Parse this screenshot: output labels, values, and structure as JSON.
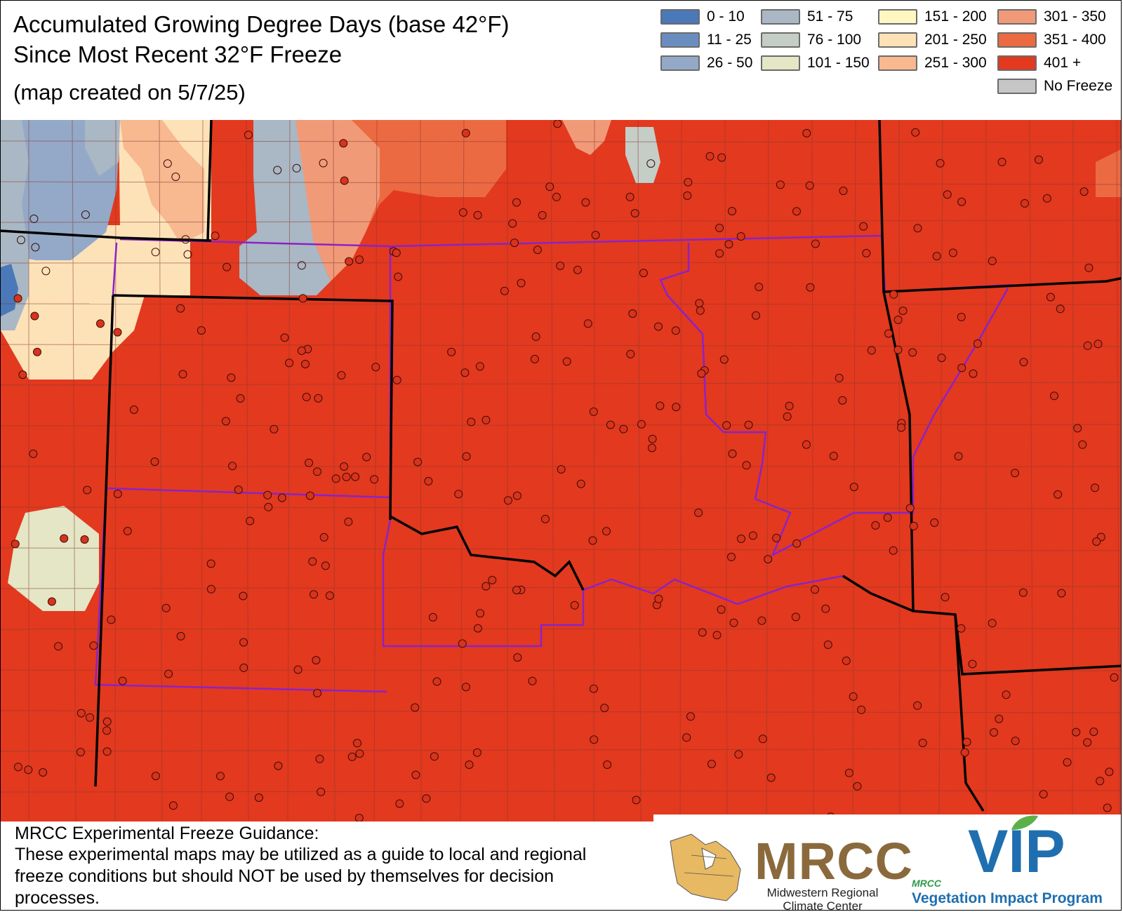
{
  "title": {
    "line1": "Accumulated Growing Degree Days (base 42°F)",
    "line2": "Since Most Recent 32°F Freeze"
  },
  "subtitle": "(map created on 5/7/25)",
  "legend": [
    {
      "label": "0 - 10",
      "color": "#4a78b8"
    },
    {
      "label": "11 - 25",
      "color": "#6a8dc0"
    },
    {
      "label": "26 - 50",
      "color": "#93a9c7"
    },
    {
      "label": "51 - 75",
      "color": "#a9b8c4"
    },
    {
      "label": "76 - 100",
      "color": "#c5cdc7"
    },
    {
      "label": "101 - 150",
      "color": "#e4e6c6"
    },
    {
      "label": "151 - 200",
      "color": "#fff7c2"
    },
    {
      "label": "201 - 250",
      "color": "#fde2b8"
    },
    {
      "label": "251 - 300",
      "color": "#f8b890"
    },
    {
      "label": "301 - 350",
      "color": "#f19a78"
    },
    {
      "label": "351 - 400",
      "color": "#ec6a42"
    },
    {
      "label": "401 +",
      "color": "#e3391e"
    },
    {
      "label": "No Freeze",
      "color": "#c6c6c6"
    }
  ],
  "map": {
    "base_color": "#e3391e",
    "state_border_color": "#000000",
    "region_border_color": "#8b22c8",
    "county_line_color": "#8a3a30",
    "station_fill": "#d8331c",
    "station_stroke": "#3a0d08"
  },
  "disclaimer": {
    "title": "MRCC Experimental Freeze Guidance:",
    "text": "These experimental maps may be utilized as a guide to local and regional freeze conditions but should NOT be used by themselves for decision processes."
  },
  "logos": {
    "mrcc_name": "MRCC",
    "mrcc_sub_line1": "Midwestern Regional",
    "mrcc_sub_line2": "Climate Center",
    "vip_small": "MRCC",
    "vip_big": "VIP",
    "vip_name": "Vegetation Impact Program"
  }
}
